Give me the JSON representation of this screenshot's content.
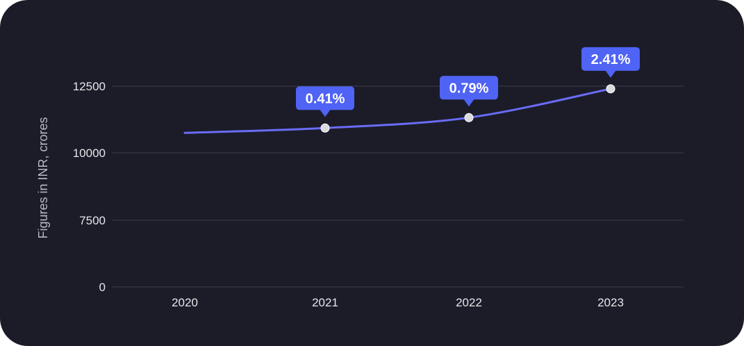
{
  "chart_data": {
    "type": "line",
    "ylabel": "Figures in INR, crores",
    "xlabel": "",
    "title": "",
    "categories": [
      "2020",
      "2021",
      "2022",
      "2023"
    ],
    "y_ticks": [
      "0",
      "7500",
      "10000",
      "12500"
    ],
    "y_tick_values": [
      0,
      7500,
      10000,
      12500
    ],
    "series": [
      {
        "values": [
          10750,
          10930,
          11320,
          12400
        ]
      }
    ],
    "annotations": [
      {
        "category": "2021",
        "text": "0.41%"
      },
      {
        "category": "2022",
        "text": "0.79%"
      },
      {
        "category": "2023",
        "text": "2.41%"
      }
    ],
    "grid": true,
    "colors": {
      "background": "#1b1c28",
      "line": "#6a6cf6",
      "callout": "#4f63f5",
      "grid": "#3d3e4a",
      "point": "#d9d9de"
    }
  }
}
